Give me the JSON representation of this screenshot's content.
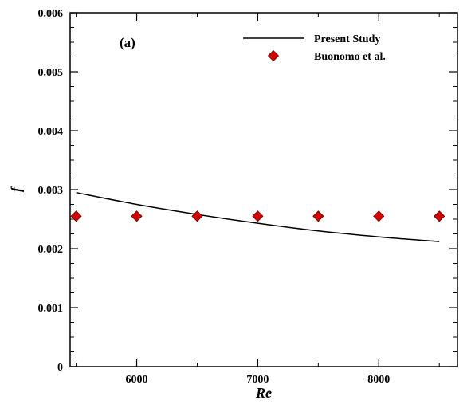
{
  "chart_data": {
    "type": "line",
    "panel_label": "(a)",
    "xlabel": "Re",
    "ylabel": "f",
    "xlim": [
      5450,
      8650
    ],
    "ylim": [
      0,
      0.006
    ],
    "x_ticks": [
      6000,
      7000,
      8000
    ],
    "x_minor_step": 500,
    "y_ticks": [
      0,
      0.001,
      0.002,
      0.003,
      0.004,
      0.005,
      0.006
    ],
    "y_tick_labels": [
      "0",
      "0.001",
      "0.002",
      "0.003",
      "0.004",
      "0.005",
      "0.006"
    ],
    "y_minor_step": 0.00025,
    "grid": false,
    "legend_position": "top-right",
    "series": [
      {
        "name": "Present Study",
        "kind": "line",
        "color": "#000000",
        "x": [
          5500,
          6000,
          6500,
          7000,
          7500,
          8000,
          8500
        ],
        "y": [
          0.00295,
          0.00275,
          0.00258,
          0.00243,
          0.0023,
          0.0022,
          0.00212
        ]
      },
      {
        "name": "Buonomo et al.",
        "kind": "marker",
        "marker": "diamond",
        "color": "#d40000",
        "x": [
          5500,
          6000,
          6500,
          7000,
          7500,
          8000,
          8500
        ],
        "y": [
          0.00255,
          0.00255,
          0.00255,
          0.00255,
          0.00255,
          0.00255,
          0.00255
        ]
      }
    ]
  }
}
